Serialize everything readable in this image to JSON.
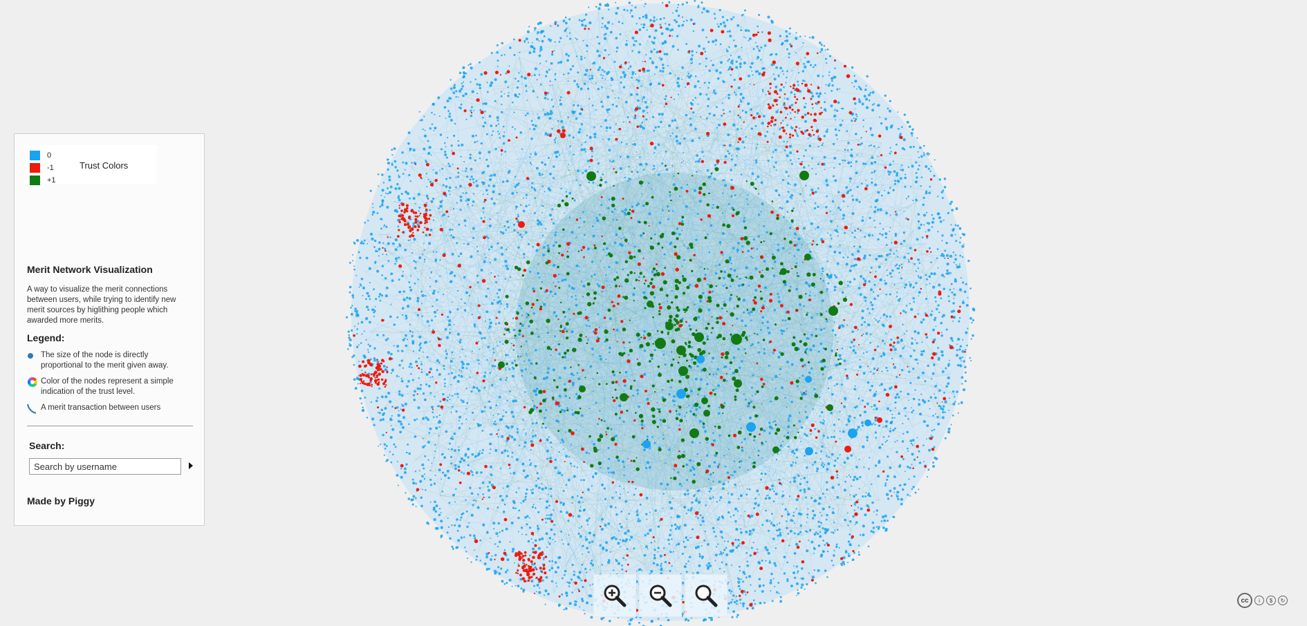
{
  "trust_colors": {
    "title": "Trust Colors",
    "items": [
      {
        "label": "0",
        "color": "#1aa3f0"
      },
      {
        "label": "-1",
        "color": "#ee1c0e"
      },
      {
        "label": "+1",
        "color": "#127a12"
      }
    ]
  },
  "panel": {
    "title": "Merit Network Visualization",
    "description": "A way to visualize the merit connections between users, while trying to identify new merit sources by higlithing people which awarded more merits.",
    "legend_title": "Legend:",
    "legend": [
      {
        "icon": "node-size-icon",
        "text": "The size of the node is directly proportional to the merit given away."
      },
      {
        "icon": "color-wheel-icon",
        "text": "Color of the nodes represent a simple indication of the trust level."
      },
      {
        "icon": "edge-curve-icon",
        "text": "A merit transaction between users"
      }
    ],
    "search_title": "Search:",
    "search_placeholder": "Search by username",
    "made_by": "Made by Piggy"
  },
  "zoom_controls": [
    {
      "name": "zoom-in-button",
      "icon": "zoom-in-icon"
    },
    {
      "name": "zoom-out-button",
      "icon": "zoom-out-icon"
    },
    {
      "name": "zoom-reset-button",
      "icon": "zoom-reset-icon"
    }
  ],
  "license": {
    "icon": "creative-commons-icon",
    "label": "cc"
  },
  "colors": {
    "neutral": "#1aa3f0",
    "negative": "#ee1c0e",
    "positive": "#127a12",
    "background": "#efefef"
  }
}
